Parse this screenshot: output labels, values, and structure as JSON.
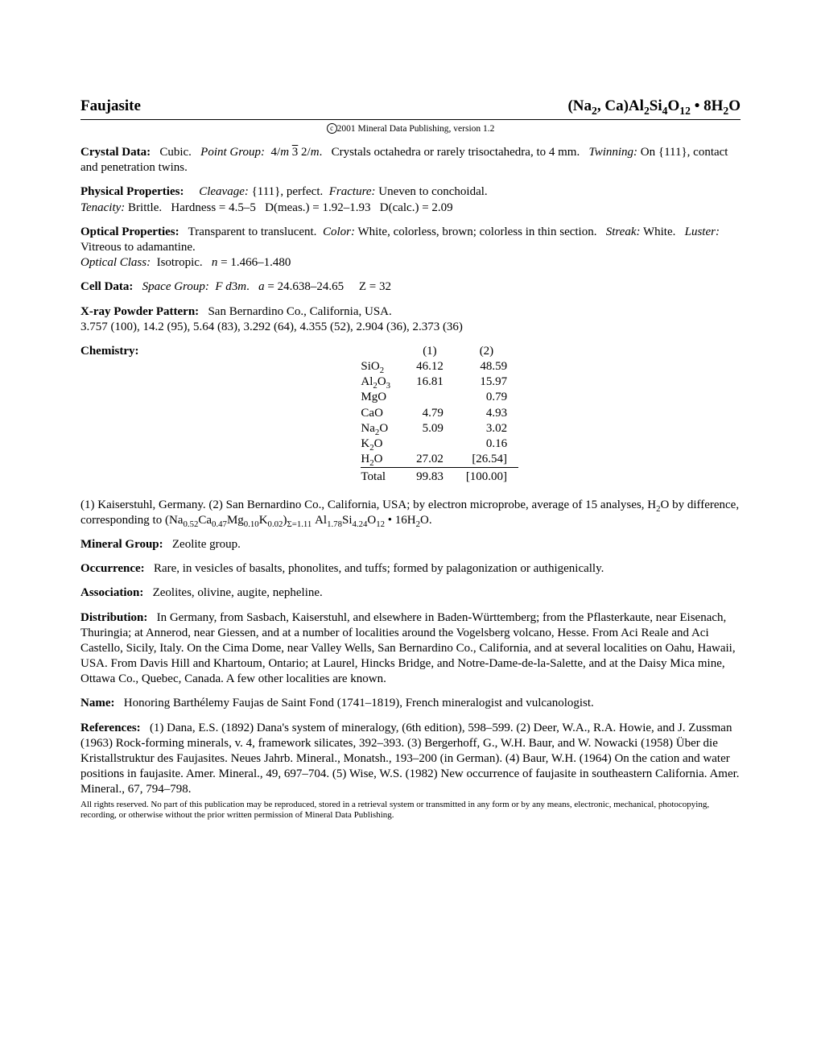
{
  "header": {
    "mineral_name": "Faujasite",
    "formula_html": "(Na<span class=\"sub\">2</span>, Ca)Al<span class=\"sub\">2</span>Si<span class=\"sub\">4</span>O<span class=\"sub\">12</span>&nbsp;&bull;&nbsp;8H<span class=\"sub\">2</span>O"
  },
  "copyright": "2001 Mineral Data Publishing, version 1.2",
  "crystal_data": {
    "label": "Crystal Data:",
    "sys": "Cubic.",
    "pg_label": "Point Group:",
    "pg_html": "4/<span class=\"ital\">m</span>&nbsp;<span class=\"overbar\">3</span>&nbsp;2/<span class=\"ital\">m</span>.",
    "habit": "Crystals octahedra or rarely trisoctahedra, to 4 mm.",
    "twin_label": "Twinning:",
    "twin": "On {111}, contact and penetration twins."
  },
  "physical": {
    "label": "Physical Properties:",
    "cleav_label": "Cleavage:",
    "cleav": "{111}, perfect.",
    "frac_label": "Fracture:",
    "frac": "Uneven to conchoidal.",
    "ten_label": "Tenacity:",
    "ten": "Brittle.",
    "hardness": "Hardness = 4.5–5",
    "dmeas": "D(meas.) = 1.92–1.93",
    "dcalc": "D(calc.) = 2.09"
  },
  "optical": {
    "label": "Optical Properties:",
    "trans": "Transparent to translucent.",
    "color_label": "Color:",
    "color": "White, colorless, brown; colorless in thin section.",
    "streak_label": "Streak:",
    "streak": "White.",
    "luster_label": "Luster:",
    "luster": "Vitreous to adamantine.",
    "oc_label": "Optical Class:",
    "oc": "Isotropic.",
    "n_html": "<span class=\"ital\">n</span> = 1.466–1.480"
  },
  "cell": {
    "label": "Cell Data:",
    "sg_label": "Space Group:",
    "sg_html": "<span class=\"ital\">F d</span>3<span class=\"ital\">m</span>.",
    "a_html": "<span class=\"ital\">a</span> = 24.638–24.65",
    "z": "Z = 32"
  },
  "xray": {
    "label": "X-ray Powder Pattern:",
    "loc": "San Bernardino Co., California, USA.",
    "lines": "3.757 (100), 14.2 (95), 5.64 (83), 3.292 (64), 4.355 (52), 2.904 (36), 2.373 (36)"
  },
  "chemistry": {
    "label": "Chemistry:",
    "col1": "(1)",
    "col2": "(2)",
    "rows": [
      {
        "c": "SiO<span class=\"sub\">2</span>",
        "v1": "46.12",
        "v2": "48.59"
      },
      {
        "c": "Al<span class=\"sub\">2</span>O<span class=\"sub\">3</span>",
        "v1": "16.81",
        "v2": "15.97"
      },
      {
        "c": "MgO",
        "v1": "",
        "v2": "0.79"
      },
      {
        "c": "CaO",
        "v1": "4.79",
        "v2": "4.93"
      },
      {
        "c": "Na<span class=\"sub\">2</span>O",
        "v1": "5.09",
        "v2": "3.02"
      },
      {
        "c": "K<span class=\"sub\">2</span>O",
        "v1": "",
        "v2": "0.16"
      },
      {
        "c": "H<span class=\"sub\">2</span>O",
        "v1": "27.02",
        "v2": "[26.54]"
      }
    ],
    "total_label": "Total",
    "total1": "99.83",
    "total2": "[100.00]",
    "notes_html": "(1) Kaiserstuhl, Germany. (2) San Bernardino Co., California, USA; by electron microprobe, average of 15 analyses, H<span class=\"sub\">2</span>O by difference, corresponding to (Na<span class=\"sub\">0.52</span>Ca<span class=\"sub\">0.47</span>Mg<span class=\"sub\">0.10</span>K<span class=\"sub\">0.02</span>)<span class=\"sub\">&Sigma;=1.11</span> Al<span class=\"sub\">1.78</span>Si<span class=\"sub\">4.24</span>O<span class=\"sub\">12</span>&nbsp;&bull;&nbsp;16H<span class=\"sub\">2</span>O."
  },
  "group": {
    "label": "Mineral Group:",
    "text": "Zeolite group."
  },
  "occurrence": {
    "label": "Occurrence:",
    "text": "Rare, in vesicles of basalts, phonolites, and tuffs; formed by palagonization or authigenically."
  },
  "association": {
    "label": "Association:",
    "text": "Zeolites, olivine, augite, nepheline."
  },
  "distribution": {
    "label": "Distribution:",
    "text": "In Germany, from Sasbach, Kaiserstuhl, and elsewhere in Baden-Württemberg; from the Pflasterkaute, near Eisenach, Thuringia; at Annerod, near Giessen, and at a number of localities around the Vogelsberg volcano, Hesse. From Aci Reale and Aci Castello, Sicily, Italy. On the Cima Dome, near Valley Wells, San Bernardino Co., California, and at several localities on Oahu, Hawaii, USA. From Davis Hill and Khartoum, Ontario; at Laurel, Hincks Bridge, and Notre-Dame-de-la-Salette, and at the Daisy Mica mine, Ottawa Co., Quebec, Canada. A few other localities are known."
  },
  "name": {
    "label": "Name:",
    "text": "Honoring Barthélemy Faujas de Saint Fond (1741–1819), French mineralogist and vulcanologist."
  },
  "references": {
    "label": "References:",
    "text": "(1) Dana, E.S. (1892) Dana's system of mineralogy, (6th edition), 598–599. (2) Deer, W.A., R.A. Howie, and J. Zussman (1963) Rock-forming minerals, v. 4, framework silicates, 392–393. (3) Bergerhoff, G., W.H. Baur, and W. Nowacki (1958) Über die Kristallstruktur des Faujasites. Neues Jahrb. Mineral., Monatsh., 193–200 (in German). (4) Baur, W.H. (1964) On the cation and water positions in faujasite. Amer. Mineral., 49, 697–704. (5) Wise, W.S. (1982) New occurrence of faujasite in southeastern California. Amer. Mineral., 67, 794–798."
  },
  "legal": "All rights reserved. No part of this publication may be reproduced, stored in a retrieval system or transmitted in any form or by any means, electronic, mechanical, photocopying, recording, or otherwise without the prior written permission of Mineral Data Publishing."
}
